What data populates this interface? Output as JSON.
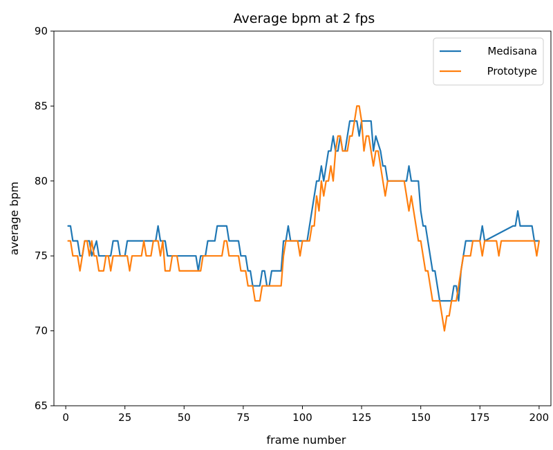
{
  "chart_data": {
    "type": "line",
    "title": "Average bpm at 2 fps",
    "xlabel": "frame number",
    "ylabel": "average bpm",
    "xlim": [
      -5,
      205
    ],
    "ylim": [
      65,
      90
    ],
    "xticks": [
      0,
      25,
      50,
      75,
      100,
      125,
      150,
      175,
      200
    ],
    "yticks": [
      65,
      70,
      75,
      80,
      85,
      90
    ],
    "grid": false,
    "legend_position": "top-right",
    "series": [
      {
        "name": "Medisana",
        "color": "#1f77b4",
        "points": [
          [
            1,
            77
          ],
          [
            2,
            77
          ],
          [
            3,
            76
          ],
          [
            5,
            76
          ],
          [
            6,
            75
          ],
          [
            7,
            75
          ],
          [
            8,
            76
          ],
          [
            10,
            76
          ],
          [
            11,
            75
          ],
          [
            13,
            76
          ],
          [
            14,
            75
          ],
          [
            19,
            75
          ],
          [
            20,
            76
          ],
          [
            22,
            76
          ],
          [
            23,
            75
          ],
          [
            25,
            75
          ],
          [
            26,
            76
          ],
          [
            38,
            76
          ],
          [
            39,
            77
          ],
          [
            40,
            76
          ],
          [
            42,
            76
          ],
          [
            43,
            75
          ],
          [
            55,
            75
          ],
          [
            56,
            74
          ],
          [
            57,
            75
          ],
          [
            59,
            75
          ],
          [
            60,
            76
          ],
          [
            63,
            76
          ],
          [
            64,
            77
          ],
          [
            68,
            77
          ],
          [
            69,
            76
          ],
          [
            73,
            76
          ],
          [
            74,
            75
          ],
          [
            76,
            75
          ],
          [
            77,
            74
          ],
          [
            78,
            74
          ],
          [
            79,
            73
          ],
          [
            82,
            73
          ],
          [
            83,
            74
          ],
          [
            84,
            74
          ],
          [
            85,
            73
          ],
          [
            86,
            73
          ],
          [
            87,
            74
          ],
          [
            91,
            74
          ],
          [
            92,
            76
          ],
          [
            93,
            76
          ],
          [
            94,
            77
          ],
          [
            95,
            76
          ],
          [
            102,
            76
          ],
          [
            103,
            77
          ],
          [
            104,
            78
          ],
          [
            105,
            79
          ],
          [
            106,
            80
          ],
          [
            107,
            80
          ],
          [
            108,
            81
          ],
          [
            109,
            80
          ],
          [
            110,
            81
          ],
          [
            111,
            82
          ],
          [
            112,
            82
          ],
          [
            113,
            83
          ],
          [
            114,
            82
          ],
          [
            115,
            82
          ],
          [
            116,
            83
          ],
          [
            117,
            82
          ],
          [
            118,
            82
          ],
          [
            119,
            83
          ],
          [
            120,
            84
          ],
          [
            123,
            84
          ],
          [
            124,
            83
          ],
          [
            125,
            84
          ],
          [
            129,
            84
          ],
          [
            130,
            82
          ],
          [
            131,
            83
          ],
          [
            133,
            82
          ],
          [
            134,
            81
          ],
          [
            135,
            81
          ],
          [
            136,
            80
          ],
          [
            144,
            80
          ],
          [
            145,
            81
          ],
          [
            146,
            80
          ],
          [
            147,
            80
          ],
          [
            148,
            80
          ],
          [
            149,
            80
          ],
          [
            150,
            78
          ],
          [
            151,
            77
          ],
          [
            152,
            77
          ],
          [
            153,
            76
          ],
          [
            154,
            75
          ],
          [
            155,
            74
          ],
          [
            156,
            74
          ],
          [
            157,
            73
          ],
          [
            158,
            72
          ],
          [
            163,
            72
          ],
          [
            164,
            73
          ],
          [
            165,
            73
          ],
          [
            166,
            72
          ],
          [
            167,
            74
          ],
          [
            168,
            75
          ],
          [
            169,
            76
          ],
          [
            175,
            76
          ],
          [
            176,
            77
          ],
          [
            177,
            76
          ],
          [
            189,
            77
          ],
          [
            190,
            77
          ],
          [
            191,
            78
          ],
          [
            192,
            77
          ],
          [
            197,
            77
          ],
          [
            198,
            76
          ],
          [
            199,
            76
          ],
          [
            200,
            76
          ]
        ]
      },
      {
        "name": "Prototype",
        "color": "#ff7f0e",
        "points": [
          [
            1,
            76
          ],
          [
            2,
            76
          ],
          [
            3,
            75
          ],
          [
            4,
            75
          ],
          [
            5,
            75
          ],
          [
            6,
            74
          ],
          [
            7,
            75
          ],
          [
            8,
            76
          ],
          [
            9,
            76
          ],
          [
            10,
            75
          ],
          [
            11,
            76
          ],
          [
            12,
            75
          ],
          [
            13,
            75
          ],
          [
            14,
            74
          ],
          [
            16,
            74
          ],
          [
            17,
            75
          ],
          [
            18,
            75
          ],
          [
            19,
            74
          ],
          [
            20,
            75
          ],
          [
            26,
            75
          ],
          [
            27,
            74
          ],
          [
            28,
            75
          ],
          [
            32,
            75
          ],
          [
            33,
            76
          ],
          [
            34,
            75
          ],
          [
            36,
            75
          ],
          [
            37,
            76
          ],
          [
            38,
            76
          ],
          [
            39,
            76
          ],
          [
            40,
            75
          ],
          [
            41,
            76
          ],
          [
            42,
            74
          ],
          [
            44,
            74
          ],
          [
            45,
            75
          ],
          [
            47,
            75
          ],
          [
            48,
            74
          ],
          [
            56,
            74
          ],
          [
            57,
            74
          ],
          [
            58,
            75
          ],
          [
            66,
            75
          ],
          [
            67,
            76
          ],
          [
            68,
            76
          ],
          [
            69,
            75
          ],
          [
            73,
            75
          ],
          [
            74,
            74
          ],
          [
            76,
            74
          ],
          [
            77,
            73
          ],
          [
            79,
            73
          ],
          [
            80,
            72
          ],
          [
            82,
            72
          ],
          [
            83,
            73
          ],
          [
            91,
            73
          ],
          [
            92,
            75
          ],
          [
            93,
            76
          ],
          [
            97,
            76
          ],
          [
            98,
            76
          ],
          [
            99,
            75
          ],
          [
            100,
            76
          ],
          [
            102,
            76
          ],
          [
            103,
            76
          ],
          [
            104,
            77
          ],
          [
            105,
            77
          ],
          [
            106,
            79
          ],
          [
            107,
            78
          ],
          [
            108,
            80
          ],
          [
            109,
            79
          ],
          [
            110,
            80
          ],
          [
            111,
            80
          ],
          [
            112,
            81
          ],
          [
            113,
            80
          ],
          [
            114,
            82
          ],
          [
            115,
            83
          ],
          [
            116,
            83
          ],
          [
            117,
            82
          ],
          [
            118,
            82
          ],
          [
            119,
            82
          ],
          [
            120,
            83
          ],
          [
            121,
            83
          ],
          [
            122,
            84
          ],
          [
            123,
            85
          ],
          [
            124,
            85
          ],
          [
            125,
            84
          ],
          [
            126,
            82
          ],
          [
            127,
            83
          ],
          [
            128,
            83
          ],
          [
            129,
            82
          ],
          [
            130,
            81
          ],
          [
            131,
            82
          ],
          [
            132,
            82
          ],
          [
            133,
            81
          ],
          [
            134,
            80
          ],
          [
            135,
            79
          ],
          [
            136,
            80
          ],
          [
            141,
            80
          ],
          [
            142,
            80
          ],
          [
            143,
            80
          ],
          [
            144,
            79
          ],
          [
            145,
            78
          ],
          [
            146,
            79
          ],
          [
            147,
            78
          ],
          [
            148,
            77
          ],
          [
            149,
            76
          ],
          [
            150,
            76
          ],
          [
            151,
            75
          ],
          [
            152,
            74
          ],
          [
            153,
            74
          ],
          [
            154,
            73
          ],
          [
            155,
            72
          ],
          [
            158,
            72
          ],
          [
            159,
            71
          ],
          [
            160,
            70
          ],
          [
            161,
            71
          ],
          [
            162,
            71
          ],
          [
            163,
            72
          ],
          [
            164,
            72
          ],
          [
            165,
            72
          ],
          [
            166,
            73
          ],
          [
            167,
            74
          ],
          [
            168,
            75
          ],
          [
            170,
            75
          ],
          [
            171,
            75
          ],
          [
            172,
            76
          ],
          [
            175,
            76
          ],
          [
            176,
            75
          ],
          [
            177,
            76
          ],
          [
            182,
            76
          ],
          [
            183,
            75
          ],
          [
            184,
            76
          ],
          [
            198,
            76
          ],
          [
            199,
            75
          ],
          [
            200,
            76
          ]
        ]
      }
    ]
  }
}
